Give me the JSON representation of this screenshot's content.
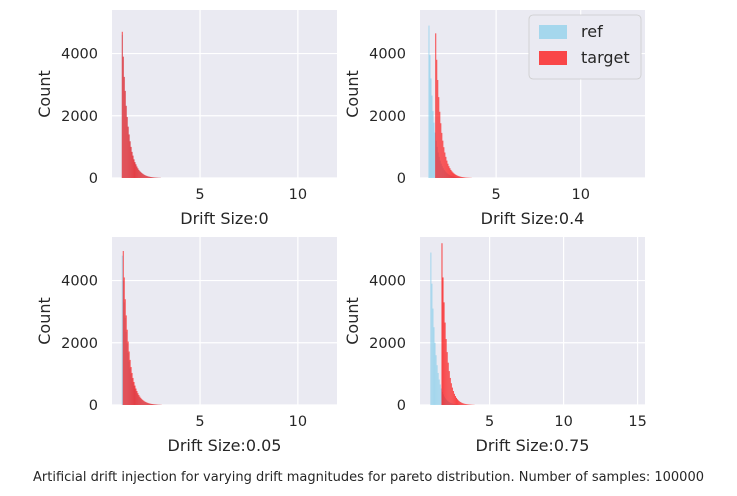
{
  "caption": "Artificial drift injection for varying drift magnitudes for pareto distribution. Number of samples: 100000",
  "colors": {
    "plot_bg": "#EAEAF2",
    "grid": "#FFFFFF",
    "ref": "#87CEEB",
    "target": "#FF0000"
  },
  "chart_data": [
    {
      "type": "bar",
      "subplot": "top-left",
      "xlabel": "Drift Size:0",
      "ylabel": "Count",
      "xlim": [
        0.5,
        12.0
      ],
      "ylim": [
        0,
        5400
      ],
      "xticks": [
        5,
        10
      ],
      "yticks": [
        0,
        2000,
        4000
      ],
      "grid": true,
      "legend": null,
      "series": [
        {
          "name": "ref",
          "color": "#87CEEB",
          "bin_start": 1.0,
          "bin_width": 0.05,
          "values": [
            4600,
            3900,
            3250,
            2800,
            2320,
            1960,
            1650,
            1400,
            1180,
            1000,
            840,
            720,
            600,
            510,
            440,
            370,
            310,
            260,
            220,
            190,
            160,
            135,
            115,
            95,
            80,
            68,
            56,
            47,
            40,
            34,
            28,
            23,
            19,
            16,
            13,
            11,
            9,
            7,
            6,
            5
          ]
        },
        {
          "name": "target",
          "color": "#FF0000",
          "bin_start": 1.0,
          "bin_width": 0.05,
          "values": [
            4700,
            3900,
            3250,
            2800,
            2320,
            1960,
            1650,
            1400,
            1180,
            1000,
            840,
            720,
            600,
            510,
            440,
            370,
            310,
            260,
            220,
            190,
            160,
            135,
            115,
            95,
            80,
            68,
            56,
            47,
            40,
            34,
            28,
            23,
            19,
            16,
            13,
            11,
            9,
            7,
            6,
            5
          ]
        }
      ]
    },
    {
      "type": "bar",
      "subplot": "top-right",
      "xlabel": "Drift Size:0.4",
      "ylabel": "Count",
      "xlim": [
        0.5,
        13.8
      ],
      "ylim": [
        0,
        5400
      ],
      "xticks": [
        5,
        10
      ],
      "yticks": [
        0,
        2000,
        4000
      ],
      "grid": true,
      "legend": "top-right",
      "series": [
        {
          "name": "ref",
          "color": "#87CEEB",
          "bin_start": 1.0,
          "bin_width": 0.06,
          "values": [
            4900,
            3950,
            3200,
            2650,
            2150,
            1780,
            1460,
            1200,
            1000,
            820,
            680,
            560,
            460,
            380,
            315,
            260,
            215,
            178,
            147,
            122,
            100,
            83,
            68,
            56,
            46,
            38,
            31,
            26,
            21,
            17,
            14,
            12,
            10,
            8,
            6,
            5
          ]
        },
        {
          "name": "target",
          "color": "#FF0000",
          "bin_start": 1.4,
          "bin_width": 0.06,
          "values": [
            4650,
            3800,
            3150,
            2600,
            2130,
            1760,
            1450,
            1200,
            990,
            820,
            680,
            560,
            460,
            380,
            315,
            260,
            215,
            178,
            147,
            122,
            100,
            83,
            68,
            56,
            46,
            38,
            31,
            26,
            21,
            17,
            14,
            12,
            10,
            8,
            6,
            5
          ]
        }
      ]
    },
    {
      "type": "bar",
      "subplot": "bottom-left",
      "xlabel": "Drift Size:0.05",
      "ylabel": "Count",
      "xlim": [
        0.5,
        12.0
      ],
      "ylim": [
        0,
        5400
      ],
      "xticks": [
        5,
        10
      ],
      "yticks": [
        0,
        2000,
        4000
      ],
      "grid": true,
      "legend": null,
      "series": [
        {
          "name": "ref",
          "color": "#87CEEB",
          "bin_start": 1.0,
          "bin_width": 0.05,
          "values": [
            4800,
            4000,
            3300,
            2800,
            2350,
            1980,
            1670,
            1400,
            1180,
            1000,
            850,
            720,
            610,
            520,
            440,
            370,
            310,
            260,
            220,
            190,
            160,
            135,
            115,
            95,
            80,
            68,
            56,
            47,
            40,
            34,
            28,
            23,
            19,
            16,
            13,
            11,
            9,
            7,
            6,
            5
          ]
        },
        {
          "name": "target",
          "color": "#FF0000",
          "bin_start": 1.05,
          "bin_width": 0.05,
          "values": [
            4950,
            4100,
            3400,
            2880,
            2420,
            2040,
            1720,
            1450,
            1220,
            1030,
            870,
            740,
            625,
            530,
            450,
            380,
            320,
            270,
            228,
            192,
            162,
            137,
            116,
            98,
            83,
            70,
            58,
            49,
            41,
            35,
            29,
            24,
            20,
            17,
            14,
            11,
            9,
            8,
            6,
            5
          ]
        }
      ]
    },
    {
      "type": "bar",
      "subplot": "bottom-right",
      "xlabel": "Drift Size:0.75",
      "ylabel": "Count",
      "xlim": [
        0.3,
        15.5
      ],
      "ylim": [
        0,
        5400
      ],
      "xticks": [
        5,
        10,
        15
      ],
      "yticks": [
        0,
        2000,
        4000
      ],
      "grid": true,
      "legend": null,
      "series": [
        {
          "name": "ref",
          "color": "#87CEEB",
          "bin_start": 1.0,
          "bin_width": 0.07,
          "values": [
            4900,
            3900,
            3100,
            2500,
            2000,
            1600,
            1280,
            1030,
            820,
            660,
            530,
            420,
            340,
            270,
            215,
            172,
            138,
            110,
            88,
            70,
            56,
            45,
            36,
            29,
            23,
            18,
            15,
            12,
            9,
            7,
            6,
            5
          ]
        },
        {
          "name": "target",
          "color": "#FF0000",
          "bin_start": 1.75,
          "bin_width": 0.07,
          "values": [
            5200,
            4100,
            3300,
            2650,
            2120,
            1700,
            1360,
            1090,
            870,
            700,
            560,
            450,
            360,
            288,
            230,
            184,
            147,
            118,
            94,
            75,
            60,
            48,
            38,
            31,
            25,
            20,
            16,
            13,
            10,
            8,
            6,
            5
          ]
        }
      ]
    }
  ]
}
